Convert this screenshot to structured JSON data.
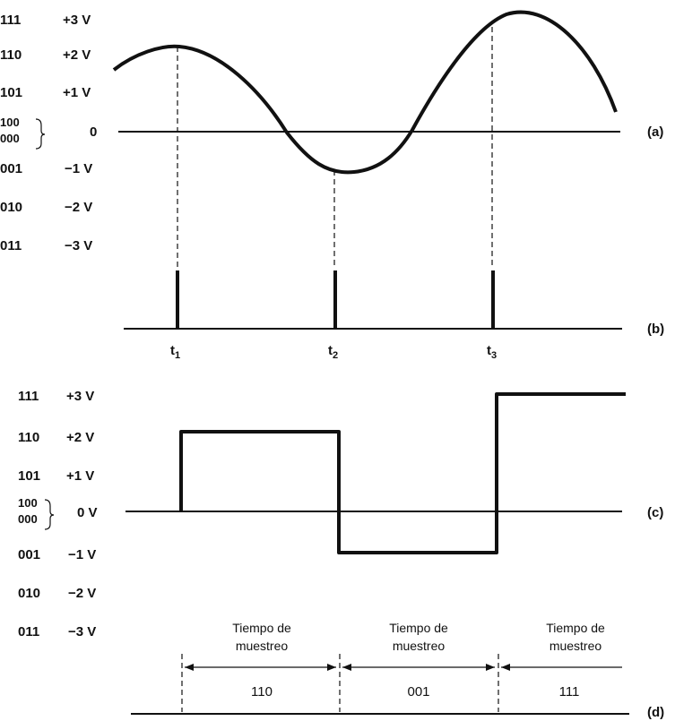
{
  "levels_top": [
    {
      "code": "111",
      "voltage": "+3 V"
    },
    {
      "code": "110",
      "voltage": "+2 V"
    },
    {
      "code": "101",
      "voltage": "+1 V"
    },
    {
      "code": "100",
      "voltage": "0"
    },
    {
      "code": "000",
      "voltage": ""
    },
    {
      "code": "001",
      "voltage": "−1 V"
    },
    {
      "code": "010",
      "voltage": "−2 V"
    },
    {
      "code": "011",
      "voltage": "−3 V"
    }
  ],
  "levels_bottom": [
    {
      "code": "111",
      "voltage": "+3 V"
    },
    {
      "code": "110",
      "voltage": "+2 V"
    },
    {
      "code": "101",
      "voltage": "+1 V"
    },
    {
      "code": "100",
      "voltage": "0 V"
    },
    {
      "code": "000",
      "voltage": ""
    },
    {
      "code": "001",
      "voltage": "−1 V"
    },
    {
      "code": "010",
      "voltage": "−2 V"
    },
    {
      "code": "011",
      "voltage": "−3 V"
    }
  ],
  "part_labels": {
    "a": "(a)",
    "b": "(b)",
    "c": "(c)",
    "d": "(d)"
  },
  "sample_times": [
    {
      "base": "t",
      "sub": "1"
    },
    {
      "base": "t",
      "sub": "2"
    },
    {
      "base": "t",
      "sub": "3"
    }
  ],
  "sampling_interval": {
    "line1": "Tiempo de",
    "line2": "muestreo"
  },
  "codes": [
    "110",
    "001",
    "111"
  ]
}
